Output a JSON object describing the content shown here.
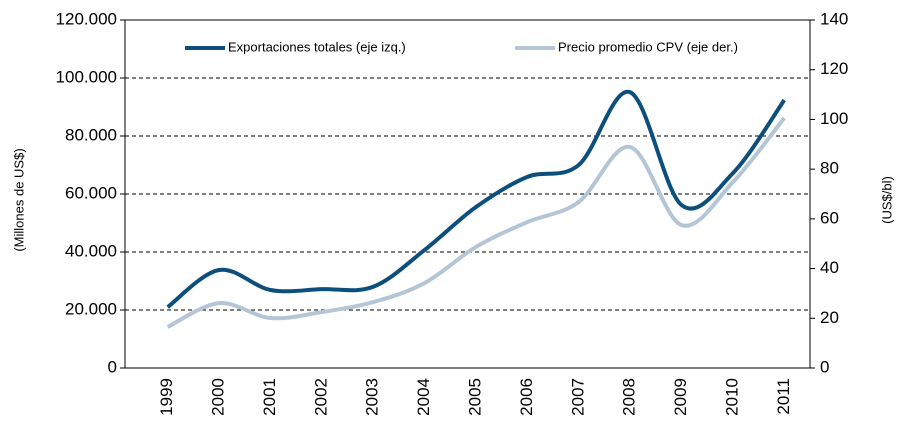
{
  "chart_data": {
    "type": "line",
    "categories": [
      "1999",
      "2000",
      "2001",
      "2002",
      "2003",
      "2004",
      "2005",
      "2006",
      "2007",
      "2008",
      "2009",
      "2010",
      "2011"
    ],
    "series": [
      {
        "name": "Exportaciones totales (eje izq.)",
        "color": "#0d4f7c",
        "values": [
          21000,
          33800,
          26900,
          27200,
          28000,
          40700,
          55500,
          65900,
          70000,
          95100,
          56200,
          67200,
          92400
        ]
      },
      {
        "name": "Precio promedio CPV (eje der.)",
        "color": "#b4c6d6",
        "axis": "y2",
        "values": [
          16.5,
          26.1,
          20.1,
          22.5,
          26.5,
          34.2,
          48.7,
          58.7,
          66.8,
          88.9,
          57.5,
          74.8,
          100.6
        ]
      }
    ],
    "ylabel": "(Millones de US$)",
    "y2label": "(US$/bl)",
    "ylim": [
      0,
      120000
    ],
    "yticks": [
      0,
      {
        "value": 20000,
        "label": "20.000"
      },
      {
        "value": 40000,
        "label": "40.000"
      },
      {
        "value": 60000,
        "label": "60.000"
      },
      {
        "value": 80000,
        "label": "80.000"
      },
      {
        "value": 100000,
        "label": "100.000"
      },
      {
        "value": 120000,
        "label": "120.000"
      }
    ],
    "y2lim": [
      0,
      140
    ],
    "y2ticks": [
      0,
      20,
      40,
      60,
      80,
      100,
      120,
      140
    ],
    "grid": true,
    "legend": "top"
  }
}
